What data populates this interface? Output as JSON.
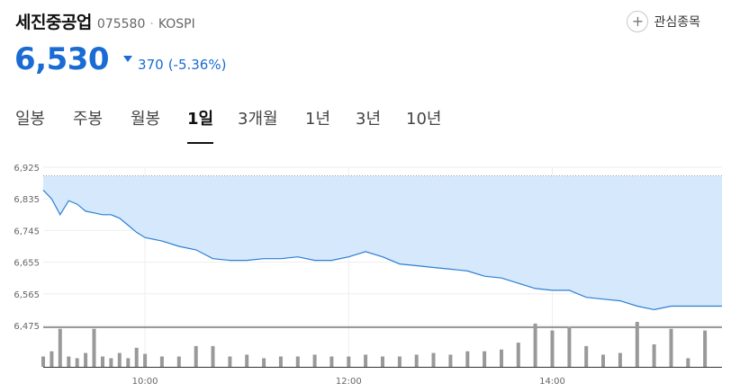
{
  "stock": {
    "name": "세진중공업",
    "code": "075580",
    "market": "KOSPI",
    "price": "6,530",
    "change": "370",
    "change_pct": "(-5.36%)",
    "direction": "down",
    "color": "#1a6bd4"
  },
  "watchlist": {
    "label": "관심종목",
    "icon": "plus-icon"
  },
  "tabs": [
    {
      "label": "일봉"
    },
    {
      "label": "주봉"
    },
    {
      "label": "월봉"
    },
    {
      "label": "1일",
      "active": true
    },
    {
      "label": "3개월"
    },
    {
      "label": "1년"
    },
    {
      "label": "3년"
    },
    {
      "label": "10년"
    }
  ],
  "chart_data": {
    "type": "area",
    "y_ticks": [
      "6,925",
      "6,835",
      "6,745",
      "6,655",
      "6,565",
      "6,475"
    ],
    "ylim": [
      6475,
      6925
    ],
    "x_ticks": [
      "10:00",
      "12:00",
      "14:00"
    ],
    "prev_close": 6900,
    "line_color": "#2b7fd6",
    "fill_color": "#d6e8fb",
    "volume_color": "#999999",
    "x": [
      "09:00",
      "09:05",
      "09:10",
      "09:15",
      "09:20",
      "09:25",
      "09:30",
      "09:35",
      "09:40",
      "09:45",
      "09:50",
      "09:55",
      "10:00",
      "10:10",
      "10:20",
      "10:30",
      "10:40",
      "10:50",
      "11:00",
      "11:10",
      "11:20",
      "11:30",
      "11:40",
      "11:50",
      "12:00",
      "12:10",
      "12:20",
      "12:30",
      "12:40",
      "12:50",
      "13:00",
      "13:10",
      "13:20",
      "13:30",
      "13:40",
      "13:50",
      "14:00",
      "14:10",
      "14:20",
      "14:30",
      "14:40",
      "14:50",
      "15:00",
      "15:10",
      "15:20",
      "15:30"
    ],
    "price": [
      6860,
      6835,
      6790,
      6830,
      6820,
      6800,
      6795,
      6790,
      6790,
      6780,
      6760,
      6740,
      6725,
      6715,
      6700,
      6690,
      6665,
      6660,
      6660,
      6665,
      6665,
      6670,
      6660,
      6660,
      6670,
      6685,
      6670,
      6650,
      6645,
      6640,
      6635,
      6630,
      6615,
      6610,
      6595,
      6580,
      6575,
      6575,
      6555,
      6550,
      6545,
      6530,
      6520,
      6530,
      6530,
      6530
    ],
    "volume": [
      12,
      18,
      44,
      12,
      10,
      16,
      44,
      12,
      10,
      16,
      10,
      22,
      15,
      12,
      12,
      24,
      24,
      12,
      14,
      10,
      12,
      12,
      14,
      12,
      12,
      14,
      12,
      12,
      14,
      16,
      14,
      18,
      18,
      20,
      28,
      50,
      42,
      46,
      24,
      14,
      16,
      52,
      26,
      44,
      10,
      42
    ]
  }
}
